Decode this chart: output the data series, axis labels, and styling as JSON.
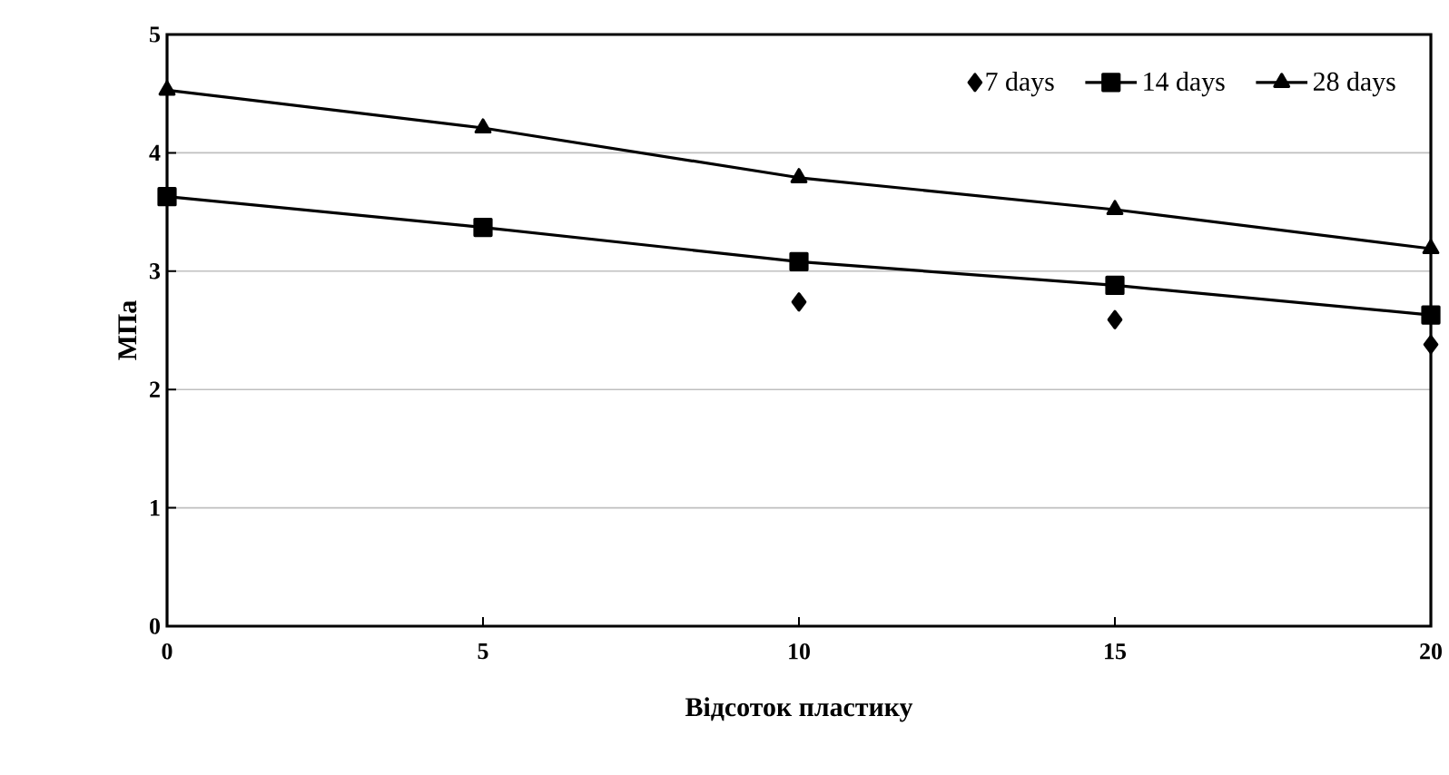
{
  "chart_data": {
    "type": "line",
    "xlabel": "Відсоток пластику",
    "ylabel": "МПа",
    "x": [
      0,
      5,
      10,
      15,
      20
    ],
    "series": [
      {
        "name": "7 days",
        "type": "scatter",
        "marker": "diamond",
        "color": "#000000",
        "values": [
          null,
          null,
          2.74,
          2.59,
          2.38
        ]
      },
      {
        "name": "14 days",
        "marker": "square",
        "color": "#000000",
        "values": [
          3.63,
          3.37,
          3.08,
          2.88,
          2.63
        ]
      },
      {
        "name": "28 days",
        "marker": "triangle",
        "color": "#000000",
        "values": [
          4.53,
          4.21,
          3.79,
          3.52,
          3.19
        ]
      }
    ],
    "xlim": [
      0,
      20
    ],
    "xticks": [
      0,
      5,
      10,
      15,
      20
    ],
    "ylim": [
      0,
      5
    ],
    "yticks": [
      0,
      1,
      2,
      3,
      4,
      5
    ],
    "grid": "y",
    "legend": "top right",
    "line_style": "solid"
  }
}
